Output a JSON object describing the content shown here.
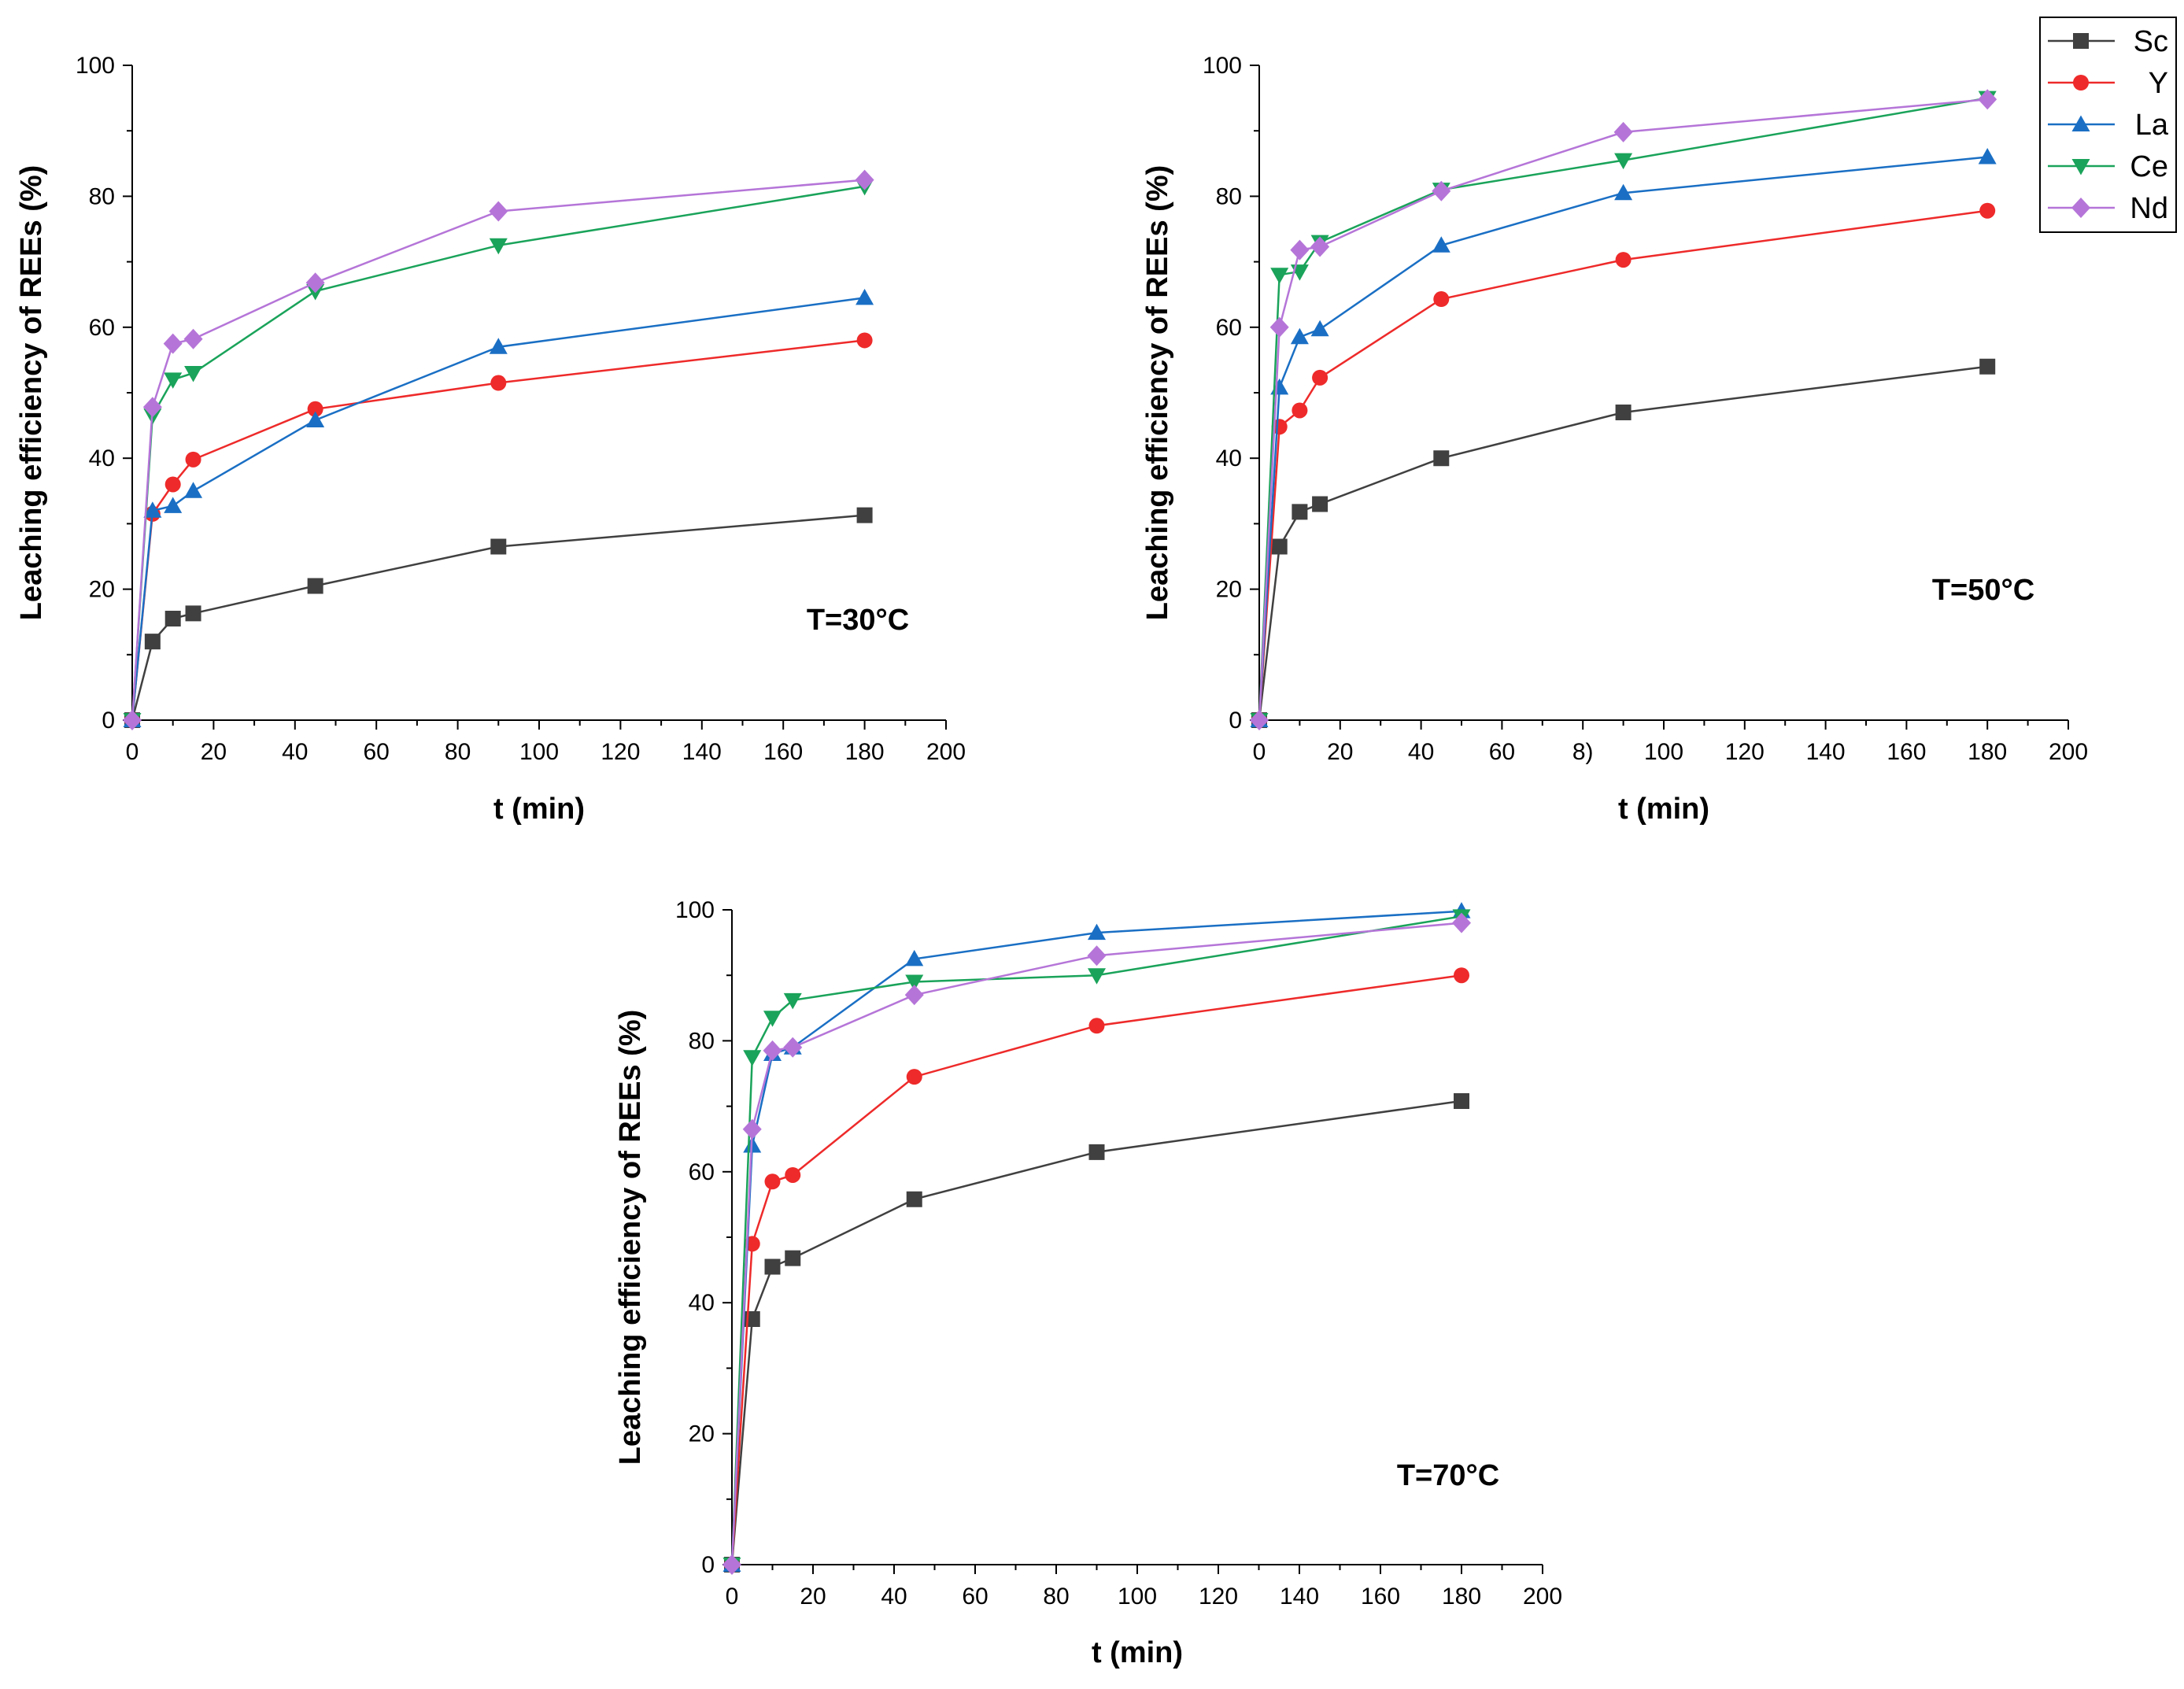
{
  "legend": {
    "entries": [
      {
        "name": "Sc",
        "color": "#404040",
        "marker": "square"
      },
      {
        "name": "Y",
        "color": "#ee2a2a",
        "marker": "circle"
      },
      {
        "name": "La",
        "color": "#1a6fc4",
        "marker": "triangle-up"
      },
      {
        "name": "Ce",
        "color": "#1aa35a",
        "marker": "triangle-down"
      },
      {
        "name": "Nd",
        "color": "#b575d8",
        "marker": "diamond"
      }
    ]
  },
  "chart_data": [
    {
      "type": "line",
      "panel": "top-left",
      "annotation": "T=30°C",
      "xlabel": "t (min)",
      "ylabel": "Leaching efficiency of REEs (%)",
      "xlim": [
        0,
        200
      ],
      "ylim": [
        0,
        100
      ],
      "xticks": [
        "0",
        "20",
        "40",
        "60",
        "80",
        "100",
        "120",
        "140",
        "160",
        "180",
        "200"
      ],
      "yticks": [
        "0",
        "20",
        "40",
        "60",
        "80",
        "100"
      ],
      "x": [
        0,
        5,
        10,
        15,
        45,
        90,
        180
      ],
      "series": [
        {
          "name": "Sc",
          "values": [
            0,
            12,
            15.5,
            16.3,
            20.5,
            26.5,
            31.3
          ]
        },
        {
          "name": "Y",
          "values": [
            0,
            31.5,
            36,
            39.8,
            47.5,
            51.5,
            58
          ]
        },
        {
          "name": "La",
          "values": [
            0,
            32,
            32.7,
            35,
            45.8,
            57,
            64.5
          ]
        },
        {
          "name": "Ce",
          "values": [
            0,
            46.5,
            52,
            53,
            65.5,
            72.5,
            81.5
          ]
        },
        {
          "name": "Nd",
          "values": [
            0,
            47.8,
            57.5,
            58.2,
            66.8,
            77.7,
            82.5
          ]
        }
      ]
    },
    {
      "type": "line",
      "panel": "top-right",
      "annotation": "T=50°C",
      "xlabel": "t (min)",
      "ylabel": "Leaching efficiency of REEs (%)",
      "xlim": [
        0,
        200
      ],
      "ylim": [
        0,
        100
      ],
      "xticks": [
        "0",
        "20",
        "40",
        "60",
        "8)",
        "100",
        "120",
        "140",
        "160",
        "180",
        "200"
      ],
      "yticks": [
        "0",
        "20",
        "40",
        "60",
        "80",
        "100"
      ],
      "x": [
        0,
        5,
        10,
        15,
        45,
        90,
        180
      ],
      "series": [
        {
          "name": "Sc",
          "values": [
            0,
            26.5,
            31.8,
            33,
            40,
            47,
            54
          ]
        },
        {
          "name": "Y",
          "values": [
            0,
            44.8,
            47.3,
            52.3,
            64.3,
            70.3,
            77.8
          ]
        },
        {
          "name": "La",
          "values": [
            0,
            50.8,
            58.5,
            59.7,
            72.5,
            80.5,
            86
          ]
        },
        {
          "name": "Ce",
          "values": [
            0,
            68,
            68.5,
            73,
            81,
            85.5,
            95
          ]
        },
        {
          "name": "Nd",
          "values": [
            0,
            60,
            71.8,
            72.3,
            80.8,
            89.8,
            94.8
          ]
        }
      ]
    },
    {
      "type": "line",
      "panel": "bottom-center",
      "annotation": "T=70°C",
      "xlabel": "t (min)",
      "ylabel": "Leaching efficiency of REEs (%)",
      "xlim": [
        0,
        200
      ],
      "ylim": [
        0,
        100
      ],
      "xticks": [
        "0",
        "20",
        "40",
        "60",
        "80",
        "100",
        "120",
        "140",
        "160",
        "180",
        "200"
      ],
      "yticks": [
        "0",
        "20",
        "40",
        "60",
        "80",
        "100"
      ],
      "x": [
        0,
        5,
        10,
        15,
        45,
        90,
        180
      ],
      "series": [
        {
          "name": "Sc",
          "values": [
            0,
            37.5,
            45.5,
            46.8,
            55.8,
            63,
            70.8
          ]
        },
        {
          "name": "Y",
          "values": [
            0,
            49,
            58.5,
            59.5,
            74.5,
            82.3,
            90
          ]
        },
        {
          "name": "La",
          "values": [
            0,
            64,
            78,
            79,
            92.5,
            96.5,
            99.8
          ]
        },
        {
          "name": "Ce",
          "values": [
            0,
            77.5,
            83.5,
            86.2,
            89,
            90,
            99
          ]
        },
        {
          "name": "Nd",
          "values": [
            0,
            66.5,
            78.5,
            79,
            87,
            93,
            98
          ]
        }
      ]
    }
  ]
}
